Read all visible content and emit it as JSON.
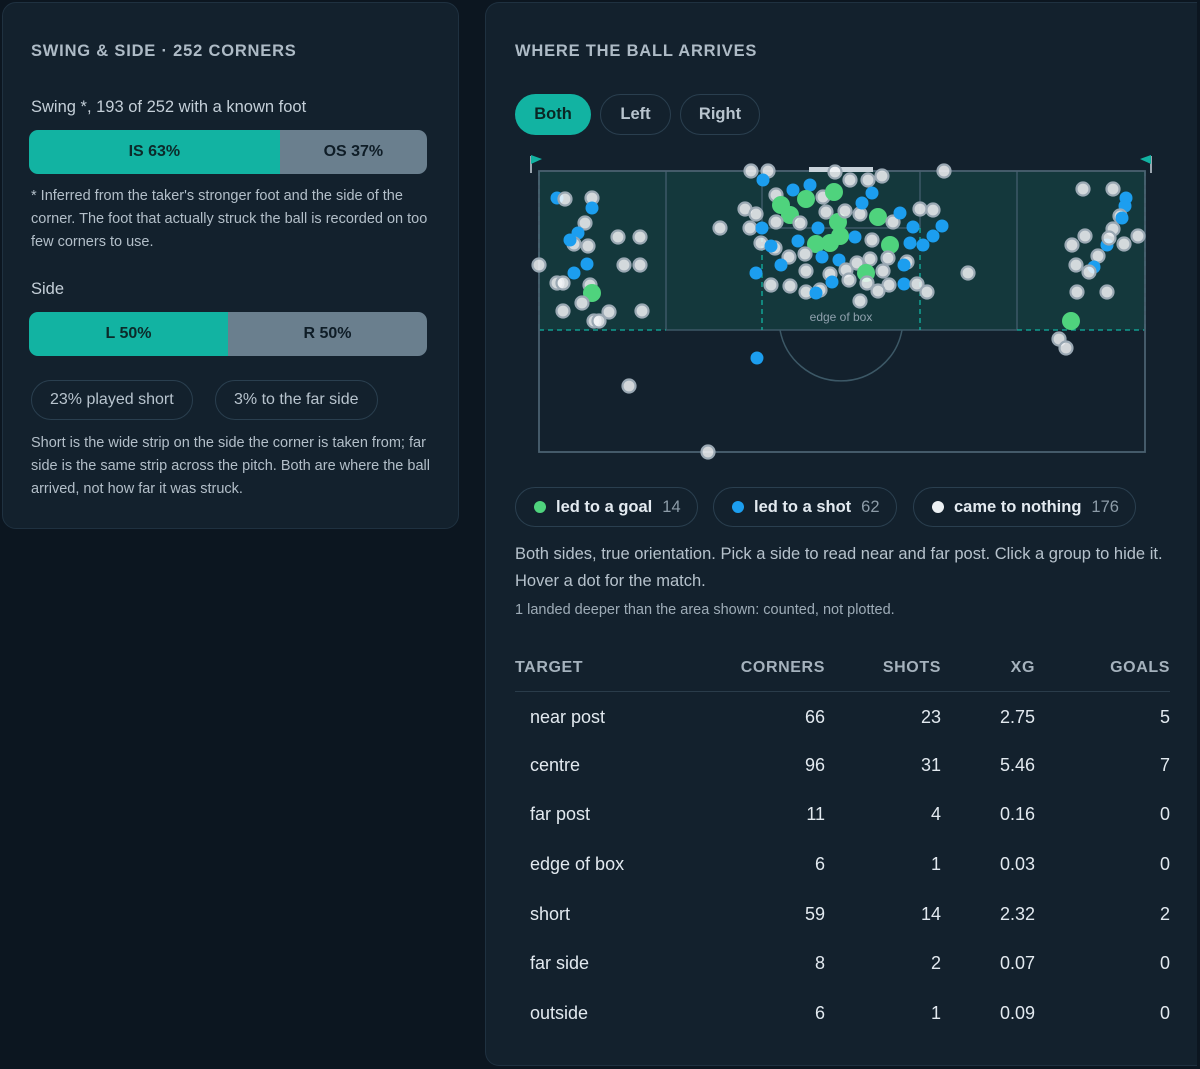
{
  "left": {
    "title": "SWING & SIDE · 252 CORNERS",
    "swing_label": "Swing *, 193 of 252 with a known foot",
    "swing_bar": [
      {
        "label": "IS 63%",
        "value": 63
      },
      {
        "label": "OS 37%",
        "value": 37
      }
    ],
    "swing_note": "* Inferred from the taker's stronger foot and the side of the corner. The foot that actually struck the ball is recorded on too few corners to use.",
    "side_label": "Side",
    "side_bar": [
      {
        "label": "L 50%",
        "value": 50
      },
      {
        "label": "R 50%",
        "value": 50
      }
    ],
    "pills": [
      "23% played short",
      "3% to the far side"
    ],
    "side_note": "Short is the wide strip on the side the corner is taken from; far side is the same strip across the pitch. Both are where the ball arrived, not how far it was struck."
  },
  "right": {
    "title": "WHERE THE BALL ARRIVES",
    "tabs": [
      {
        "label": "Both",
        "active": true
      },
      {
        "label": "Left",
        "active": false
      },
      {
        "label": "Right",
        "active": false
      }
    ],
    "pitch_label": "edge of box",
    "legend": [
      {
        "label": "led to a goal",
        "count": "14",
        "color": "#4fd37d"
      },
      {
        "label": "led to a shot",
        "count": "62",
        "color": "#1c9eef"
      },
      {
        "label": "came to nothing",
        "count": "176",
        "color": "#ecf0f3"
      }
    ],
    "description": "Both sides, true orientation. Pick a side to read near and far post. Click a group to hide it. Hover a dot for the match.",
    "footnote": "1 landed deeper than the area shown: counted, not plotted.",
    "table": {
      "headers": [
        "TARGET",
        "CORNERS",
        "SHOTS",
        "XG",
        "GOALS"
      ],
      "rows": [
        [
          "near post",
          "66",
          "23",
          "2.75",
          "5"
        ],
        [
          "centre",
          "96",
          "31",
          "5.46",
          "7"
        ],
        [
          "far post",
          "11",
          "4",
          "0.16",
          "0"
        ],
        [
          "edge of box",
          "6",
          "1",
          "0.03",
          "0"
        ],
        [
          "short",
          "59",
          "14",
          "2.32",
          "2"
        ],
        [
          "far side",
          "8",
          "2",
          "0.07",
          "0"
        ],
        [
          "outside",
          "6",
          "1",
          "0.09",
          "0"
        ]
      ]
    }
  },
  "colors": {
    "accent": "#12b3a2",
    "muted_bar": "#6a7f8e",
    "goal": "#4fd37d",
    "shot": "#1c9eef",
    "nothing": "#ecf0f3"
  }
}
